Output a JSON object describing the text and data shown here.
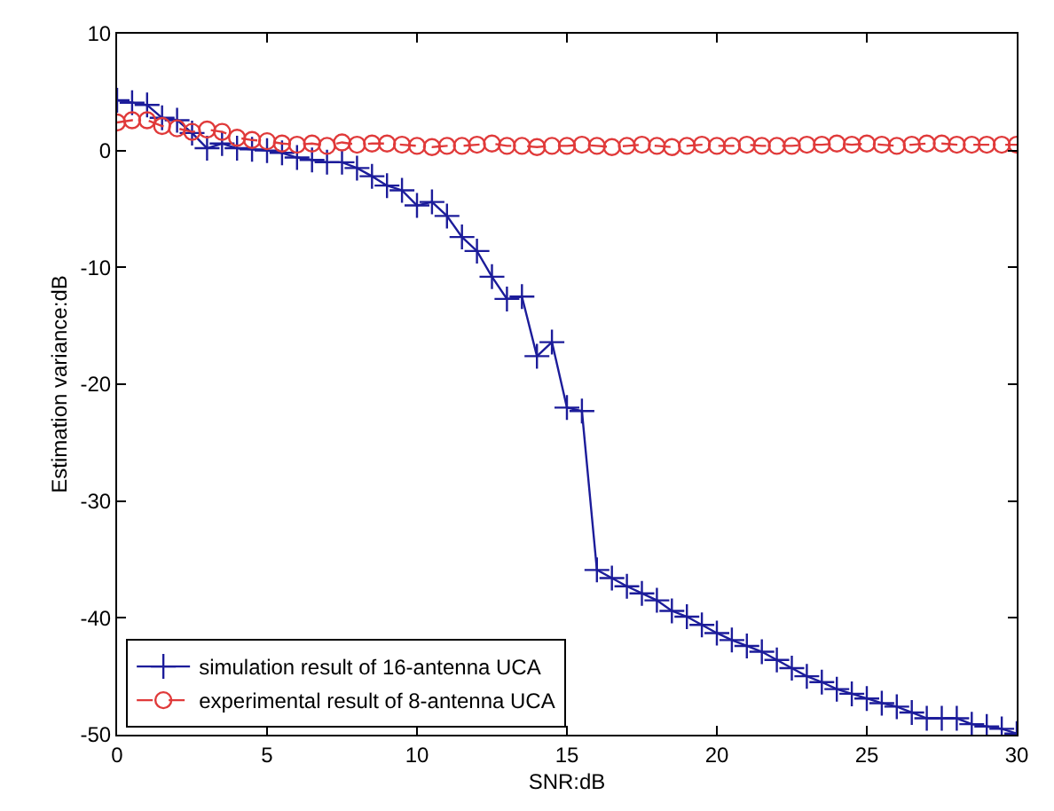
{
  "chart_data": {
    "type": "line",
    "xlabel": "SNR:dB",
    "ylabel": "Estimation variance:dB",
    "x": [
      0,
      0.5,
      1,
      1.5,
      2,
      2.5,
      3,
      3.5,
      4,
      4.5,
      5,
      5.5,
      6,
      6.5,
      7,
      7.5,
      8,
      8.5,
      9,
      9.5,
      10,
      10.5,
      11,
      11.5,
      12,
      12.5,
      13,
      13.5,
      14,
      14.5,
      15,
      15.5,
      16,
      16.5,
      17,
      17.5,
      18,
      18.5,
      19,
      19.5,
      20,
      20.5,
      21,
      21.5,
      22,
      22.5,
      23,
      23.5,
      24,
      24.5,
      25,
      25.5,
      26,
      26.5,
      27,
      27.5,
      28,
      28.5,
      29,
      29.5,
      30
    ],
    "series": [
      {
        "name": "simulation result of 16-antenna UCA",
        "color": "#1c1c9a",
        "marker": "cross",
        "line_style": "solid",
        "values": [
          4.3,
          4.1,
          3.9,
          2.8,
          2.6,
          1.5,
          0.2,
          0.6,
          0.2,
          0.1,
          0,
          -0.2,
          -0.6,
          -0.8,
          -1,
          -1,
          -1.5,
          -2.2,
          -3,
          -3.4,
          -4.7,
          -4.4,
          -5.6,
          -7.4,
          -8.6,
          -10.8,
          -12.7,
          -12.5,
          -17.6,
          -16.4,
          -22,
          -22.3,
          -35.9,
          -36.6,
          -37.3,
          -37.9,
          -38.5,
          -39.4,
          -39.9,
          -40.6,
          -41.3,
          -41.9,
          -42.4,
          -42.9,
          -43.6,
          -44.3,
          -45,
          -45.5,
          -46.1,
          -46.5,
          -46.9,
          -47.3,
          -47.6,
          -48.1,
          -48.6,
          -48.6,
          -48.6,
          -49.1,
          -49.3,
          -49.5,
          -49.9
        ]
      },
      {
        "name": "experimental result of 8-antenna UCA",
        "color": "#e03a3a",
        "marker": "circle",
        "line_style": "dashed",
        "values": [
          2.4,
          2.6,
          2.6,
          2.1,
          1.9,
          1.6,
          1.8,
          1.6,
          1.1,
          0.9,
          0.8,
          0.6,
          0.5,
          0.6,
          0.4,
          0.7,
          0.5,
          0.6,
          0.6,
          0.5,
          0.4,
          0.3,
          0.4,
          0.4,
          0.5,
          0.6,
          0.4,
          0.4,
          0.3,
          0.4,
          0.4,
          0.5,
          0.4,
          0.3,
          0.4,
          0.5,
          0.4,
          0.3,
          0.4,
          0.5,
          0.4,
          0.4,
          0.5,
          0.4,
          0.4,
          0.4,
          0.5,
          0.5,
          0.6,
          0.5,
          0.6,
          0.5,
          0.4,
          0.5,
          0.6,
          0.6,
          0.5,
          0.5,
          0.5,
          0.5,
          0.5
        ]
      }
    ],
    "xlim": [
      0,
      30
    ],
    "xticks": [
      0,
      5,
      10,
      15,
      20,
      25,
      30
    ],
    "ylim": [
      -50,
      10
    ],
    "yticks": [
      -50,
      -40,
      -30,
      -20,
      -10,
      0,
      10
    ],
    "grid": false,
    "legend": "bottom left"
  }
}
